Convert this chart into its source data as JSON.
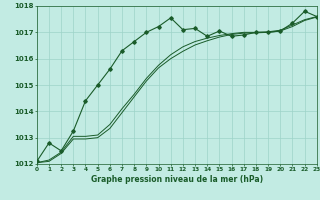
{
  "title": "Graphe pression niveau de la mer (hPa)",
  "bg_color": "#c2ebe3",
  "grid_color": "#9dd4c8",
  "line_color": "#1a5c2a",
  "marker_color": "#1a5c2a",
  "x_min": 0,
  "x_max": 23,
  "y_min": 1012,
  "y_max": 1018,
  "series1_x": [
    0,
    1,
    2,
    3,
    4,
    5,
    6,
    7,
    8,
    9,
    10,
    11,
    12,
    13,
    14,
    15,
    16,
    17,
    18,
    19,
    20,
    21,
    22,
    23
  ],
  "series1_y": [
    1012.1,
    1012.8,
    1012.5,
    1013.25,
    1014.4,
    1015.0,
    1015.6,
    1016.3,
    1016.65,
    1017.0,
    1017.22,
    1017.55,
    1017.1,
    1017.15,
    1016.85,
    1017.05,
    1016.85,
    1016.9,
    1017.0,
    1017.0,
    1017.05,
    1017.35,
    1017.8,
    1017.6
  ],
  "series2_x": [
    0,
    1,
    2,
    3,
    4,
    5,
    6,
    7,
    8,
    9,
    10,
    11,
    12,
    13,
    14,
    15,
    16,
    17,
    18,
    19,
    20,
    21,
    22,
    23
  ],
  "series2_y": [
    1012.05,
    1012.15,
    1012.45,
    1013.05,
    1013.05,
    1013.1,
    1013.5,
    1014.1,
    1014.65,
    1015.25,
    1015.75,
    1016.15,
    1016.45,
    1016.65,
    1016.78,
    1016.88,
    1016.95,
    1017.0,
    1017.0,
    1017.02,
    1017.08,
    1017.28,
    1017.48,
    1017.6
  ],
  "series3_x": [
    0,
    1,
    2,
    3,
    4,
    5,
    6,
    7,
    8,
    9,
    10,
    11,
    12,
    13,
    14,
    15,
    16,
    17,
    18,
    19,
    20,
    21,
    22,
    23
  ],
  "series3_y": [
    1012.05,
    1012.1,
    1012.4,
    1012.95,
    1012.95,
    1013.0,
    1013.35,
    1013.95,
    1014.55,
    1015.15,
    1015.65,
    1016.0,
    1016.28,
    1016.52,
    1016.68,
    1016.82,
    1016.92,
    1016.97,
    1016.98,
    1017.0,
    1017.05,
    1017.22,
    1017.45,
    1017.58
  ],
  "y_ticks": [
    1012,
    1013,
    1014,
    1015,
    1016,
    1017,
    1018
  ],
  "x_ticks": [
    0,
    1,
    2,
    3,
    4,
    5,
    6,
    7,
    8,
    9,
    10,
    11,
    12,
    13,
    14,
    15,
    16,
    17,
    18,
    19,
    20,
    21,
    22,
    23
  ]
}
